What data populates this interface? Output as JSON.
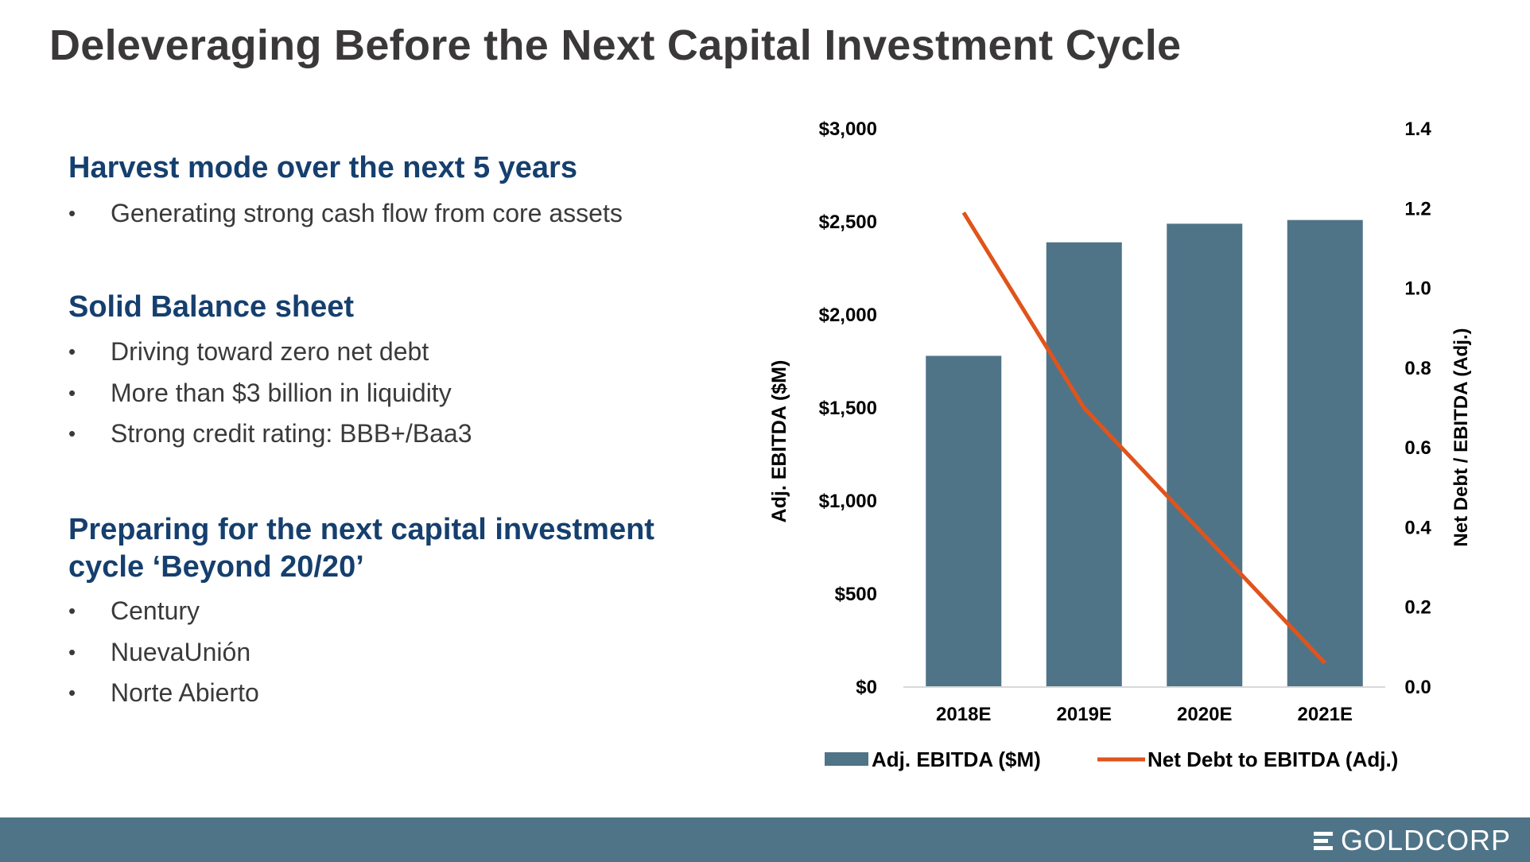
{
  "page": {
    "title": "Deleveraging Before the Next Capital Investment Cycle"
  },
  "sections": [
    {
      "heading": "Harvest mode over the next 5 years",
      "bullets": [
        "Generating strong cash flow from core assets"
      ]
    },
    {
      "heading": "Solid Balance sheet",
      "bullets": [
        "Driving toward zero net debt",
        "More than $3 billion in liquidity",
        "Strong credit rating: BBB+/Baa3"
      ]
    },
    {
      "heading": "Preparing for the next capital investment cycle ‘Beyond 20/20’",
      "bullets": [
        "Century",
        "NuevaUnión",
        "Norte Abierto"
      ]
    }
  ],
  "chart_data": {
    "type": "bar",
    "categories": [
      "2018E",
      "2019E",
      "2020E",
      "2021E"
    ],
    "series": [
      {
        "name": "Adj. EBITDA ($M)",
        "type": "bar",
        "axis": "left",
        "color": "#4f7488",
        "values": [
          1780,
          2390,
          2490,
          2510
        ]
      },
      {
        "name": "Net Debt to EBITDA (Adj.)",
        "type": "line",
        "axis": "right",
        "color": "#e0541b",
        "values": [
          1.19,
          0.7,
          0.38,
          0.06
        ]
      }
    ],
    "ylabel": "Adj. EBITDA ($M)",
    "y2label": "Net Debt / EBITDA (Adj.)",
    "ylim": [
      0,
      3000
    ],
    "y2lim": [
      0,
      1.4
    ],
    "yticks": [
      "$0",
      "$500",
      "$1,000",
      "$1,500",
      "$2,000",
      "$2,500",
      "$3,000"
    ],
    "y2ticks": [
      "0.0",
      "0.2",
      "0.4",
      "0.6",
      "0.8",
      "1.0",
      "1.2",
      "1.4"
    ],
    "legend_position": "bottom",
    "grid": false
  },
  "footer": {
    "logo_text": "GOLDCORP",
    "bar_color": "#4f7488"
  }
}
